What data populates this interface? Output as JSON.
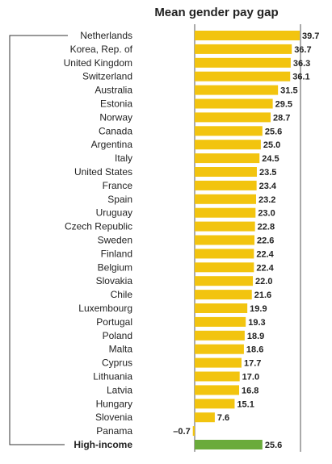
{
  "chart_data": {
    "type": "bar",
    "orientation": "horizontal",
    "title": "Mean gender pay gap",
    "categories": [
      "Netherlands",
      "Korea, Rep. of",
      "United Kingdom",
      "Switzerland",
      "Australia",
      "Estonia",
      "Norway",
      "Canada",
      "Argentina",
      "Italy",
      "United States",
      "France",
      "Spain",
      "Uruguay",
      "Czech Republic",
      "Sweden",
      "Finland",
      "Belgium",
      "Slovakia",
      "Chile",
      "Luxembourg",
      "Portugal",
      "Poland",
      "Malta",
      "Cyprus",
      "Lithuania",
      "Latvia",
      "Hungary",
      "Slovenia",
      "Panama",
      "High-income"
    ],
    "values": [
      39.7,
      36.7,
      36.3,
      36.1,
      31.5,
      29.5,
      28.7,
      25.6,
      25.0,
      24.5,
      23.5,
      23.4,
      23.2,
      23.0,
      22.8,
      22.6,
      22.4,
      22.4,
      22.0,
      21.6,
      19.9,
      19.3,
      18.9,
      18.6,
      17.7,
      17.0,
      16.8,
      15.1,
      7.6,
      -0.7,
      25.6
    ],
    "value_labels": [
      "39.7",
      "36.7",
      "36.3",
      "36.1",
      "31.5",
      "29.5",
      "28.7",
      "25.6",
      "25.0",
      "24.5",
      "23.5",
      "23.4",
      "23.2",
      "23.0",
      "22.8",
      "22.6",
      "22.4",
      "22.4",
      "22.0",
      "21.6",
      "19.9",
      "19.3",
      "18.9",
      "18.6",
      "17.7",
      "17.0",
      "16.8",
      "15.1",
      "7.6",
      "–0.7",
      "25.6"
    ],
    "highlight_category": "High-income",
    "gridlines_at": [
      0,
      40
    ],
    "colors": {
      "bar": "#F2C40F",
      "highlight": "#6AAB3B"
    }
  }
}
